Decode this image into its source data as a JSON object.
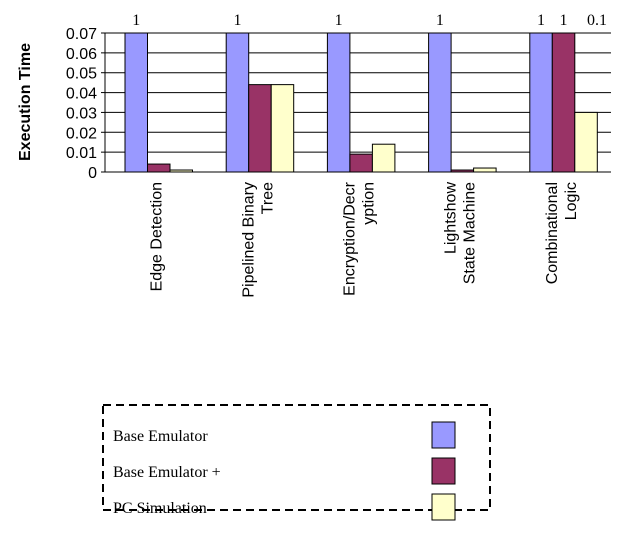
{
  "chart_data": {
    "type": "bar",
    "y_label": "Execution Time",
    "categories": [
      "Edge Detection",
      "Pipelined Binary\nTree",
      "Encryption/Decr\nyption",
      "Lightshow\nState Machine",
      "Combinational\nLogic"
    ],
    "series": [
      {
        "name": "Base Emulator",
        "color": "#9999ff",
        "values": [
          1,
          1,
          1,
          1,
          1
        ],
        "value_labels": [
          "1",
          "1",
          "1",
          "1",
          "1"
        ]
      },
      {
        "name": "Base Emulator +",
        "color": "#993366",
        "values": [
          0.004,
          0.044,
          0.009,
          0.001,
          1
        ],
        "value_labels": [
          null,
          null,
          null,
          null,
          "1"
        ]
      },
      {
        "name": "PC Simulation",
        "color": "#ffffcc",
        "values": [
          0.001,
          0.044,
          0.014,
          0.002,
          0.03
        ]
      }
    ],
    "annotations": [
      "0.1"
    ],
    "ylim": [
      0,
      0.07
    ],
    "yticks": [
      0,
      0.01,
      0.02,
      0.03,
      0.04,
      0.05,
      0.06,
      0.07
    ],
    "grid": true
  }
}
